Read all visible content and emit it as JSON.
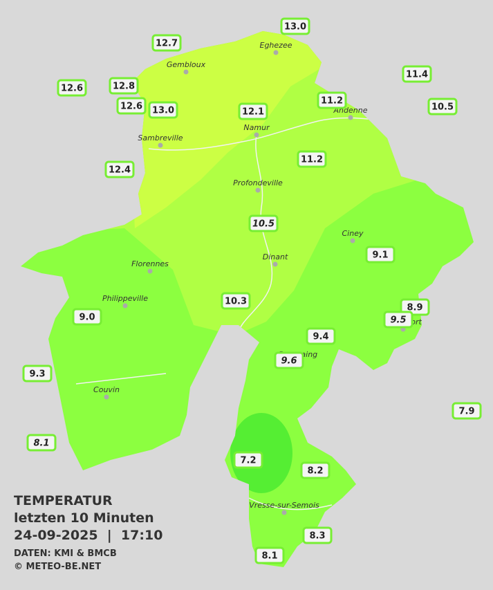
{
  "stations": [
    {
      "label": "13.0"
    },
    {
      "label": "12.7"
    },
    {
      "label": "11.4"
    },
    {
      "label": "12.6"
    },
    {
      "label": "12.8"
    },
    {
      "label": "11.2"
    },
    {
      "label": "10.5"
    },
    {
      "label": "12.6"
    },
    {
      "label": "13.0"
    },
    {
      "label": "12.1"
    },
    {
      "label": "11.2"
    },
    {
      "label": "12.4"
    },
    {
      "label": "10.5",
      "italic": true
    },
    {
      "label": "9.1"
    },
    {
      "label": "8.9"
    },
    {
      "label": "9.5",
      "italic": true
    },
    {
      "label": "10.3"
    },
    {
      "label": "9.0"
    },
    {
      "label": "9.4"
    },
    {
      "label": "9.6",
      "italic": true
    },
    {
      "label": "9.3"
    },
    {
      "label": "7.9"
    },
    {
      "label": "8.1",
      "italic": true
    },
    {
      "label": "7.2"
    },
    {
      "label": "8.2"
    },
    {
      "label": "8.3"
    },
    {
      "label": "8.1"
    }
  ],
  "towns": [
    "Eghezee",
    "Gembloux",
    "Andenne",
    "Namur",
    "Sambreville",
    "Profondeville",
    "Ciney",
    "Dinant",
    "Florennes",
    "Philippeville",
    "Rochefort",
    "Beauraing",
    "Couvin",
    "Vresse-sur-Semois"
  ],
  "header": {
    "title": "TEMPERATUR",
    "subtitle": "letzten 10 Minuten",
    "datetime": "24-09-2025  |  17:10",
    "source": "DATEN: KMI & BMCB",
    "copyright": "© METEO-BE.NET"
  }
}
